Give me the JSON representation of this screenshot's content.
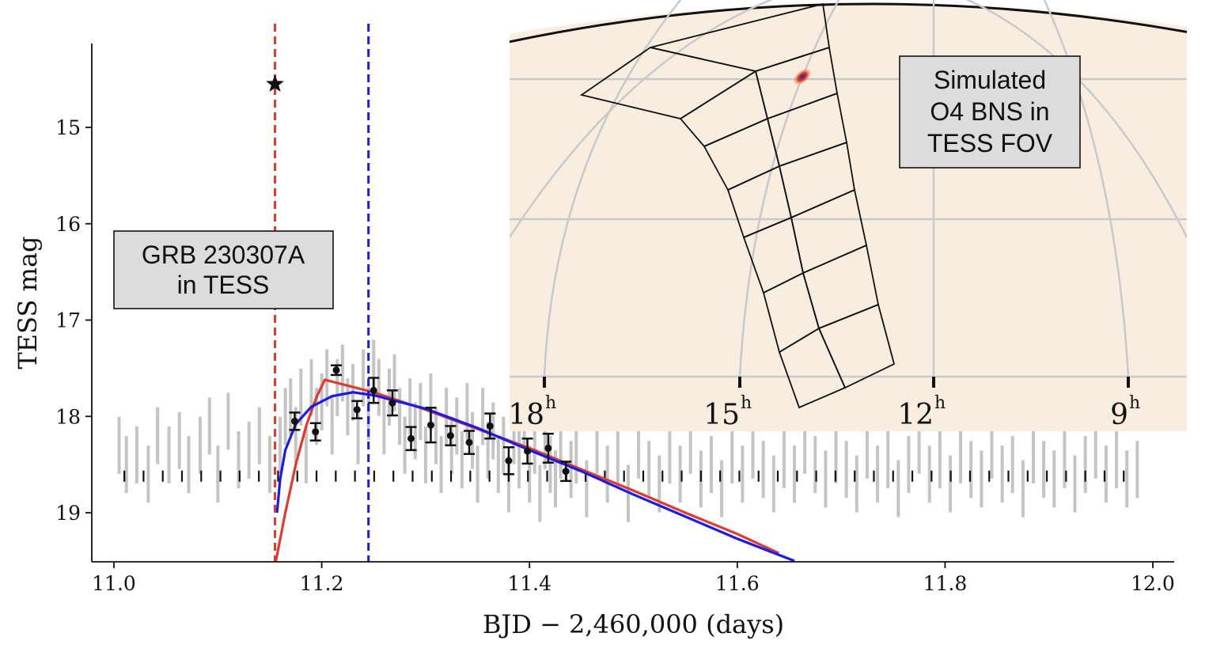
{
  "chart_data": {
    "type": "scatter",
    "xlabel": "BJD − 2,460,000 (days)",
    "ylabel": "TESS mag",
    "xlim": [
      11.0,
      12.0
    ],
    "ylim": [
      19.5,
      14.6
    ],
    "y_inverted": true,
    "xticks": [
      "11.0",
      "11.2",
      "11.4",
      "11.6",
      "11.8",
      "12.0"
    ],
    "yticks": [
      "15",
      "16",
      "17",
      "18",
      "19"
    ],
    "grb_label": "GRB 230307A\nin TESS",
    "grb_marker": {
      "x": 11.155,
      "y": 14.55
    },
    "vlines": [
      {
        "x": 11.155,
        "color": "#e03a2f"
      },
      {
        "x": 11.245,
        "color": "#1a1aee"
      }
    ],
    "raw_points": [
      [
        11.005,
        18.3
      ],
      [
        11.012,
        18.5
      ],
      [
        11.022,
        18.4
      ],
      [
        11.033,
        18.6
      ],
      [
        11.042,
        18.2
      ],
      [
        11.053,
        18.4
      ],
      [
        11.063,
        18.25
      ],
      [
        11.072,
        18.5
      ],
      [
        11.083,
        18.3
      ],
      [
        11.092,
        18.1
      ],
      [
        11.1,
        18.6
      ],
      [
        11.11,
        18.05
      ],
      [
        11.12,
        18.45
      ],
      [
        11.13,
        18.35
      ],
      [
        11.14,
        18.2
      ],
      [
        11.15,
        18.5
      ],
      [
        11.16,
        18.3
      ],
      [
        11.165,
        18.0
      ],
      [
        11.17,
        17.9
      ],
      [
        11.175,
        18.2
      ],
      [
        11.18,
        17.8
      ],
      [
        11.185,
        18.4
      ],
      [
        11.19,
        17.7
      ],
      [
        11.195,
        18.0
      ],
      [
        11.2,
        17.85
      ],
      [
        11.205,
        17.6
      ],
      [
        11.21,
        18.1
      ],
      [
        11.215,
        17.7
      ],
      [
        11.22,
        17.55
      ],
      [
        11.225,
        17.9
      ],
      [
        11.23,
        17.75
      ],
      [
        11.235,
        18.2
      ],
      [
        11.24,
        17.6
      ],
      [
        11.245,
        17.95
      ],
      [
        11.25,
        17.5
      ],
      [
        11.255,
        17.7
      ],
      [
        11.26,
        18.1
      ],
      [
        11.265,
        17.8
      ],
      [
        11.27,
        17.65
      ],
      [
        11.275,
        18.0
      ],
      [
        11.28,
        18.3
      ],
      [
        11.285,
        17.9
      ],
      [
        11.29,
        18.15
      ],
      [
        11.295,
        17.95
      ],
      [
        11.3,
        18.4
      ],
      [
        11.305,
        17.85
      ],
      [
        11.31,
        18.2
      ],
      [
        11.315,
        18.5
      ],
      [
        11.32,
        18.0
      ],
      [
        11.325,
        18.3
      ],
      [
        11.33,
        18.1
      ],
      [
        11.335,
        18.45
      ],
      [
        11.34,
        17.95
      ],
      [
        11.345,
        18.25
      ],
      [
        11.35,
        18.6
      ],
      [
        11.355,
        18.0
      ],
      [
        11.36,
        18.35
      ],
      [
        11.365,
        18.15
      ],
      [
        11.37,
        18.5
      ],
      [
        11.375,
        18.3
      ],
      [
        11.38,
        18.7
      ],
      [
        11.385,
        18.2
      ],
      [
        11.39,
        18.45
      ],
      [
        11.395,
        18.0
      ],
      [
        11.4,
        18.6
      ],
      [
        11.405,
        18.3
      ],
      [
        11.41,
        18.8
      ],
      [
        11.415,
        18.25
      ],
      [
        11.42,
        18.5
      ],
      [
        11.425,
        18.65
      ],
      [
        11.43,
        18.35
      ],
      [
        11.44,
        18.55
      ],
      [
        11.445,
        18.4
      ],
      [
        11.455,
        18.75
      ],
      [
        11.465,
        18.3
      ],
      [
        11.475,
        18.6
      ],
      [
        11.485,
        18.45
      ],
      [
        11.495,
        18.8
      ],
      [
        11.505,
        18.35
      ],
      [
        11.515,
        18.55
      ],
      [
        11.525,
        18.7
      ],
      [
        11.535,
        18.4
      ],
      [
        11.545,
        18.6
      ],
      [
        11.555,
        18.3
      ],
      [
        11.565,
        18.65
      ],
      [
        11.575,
        18.5
      ],
      [
        11.585,
        18.75
      ],
      [
        11.595,
        18.4
      ],
      [
        11.605,
        18.6
      ],
      [
        11.615,
        18.35
      ],
      [
        11.625,
        18.55
      ],
      [
        11.635,
        18.7
      ],
      [
        11.645,
        18.45
      ],
      [
        11.655,
        18.6
      ],
      [
        11.665,
        18.3
      ],
      [
        11.675,
        18.5
      ],
      [
        11.685,
        18.65
      ],
      [
        11.695,
        18.4
      ],
      [
        11.705,
        18.55
      ],
      [
        11.715,
        18.7
      ],
      [
        11.725,
        18.35
      ],
      [
        11.735,
        18.6
      ],
      [
        11.745,
        18.45
      ],
      [
        11.755,
        18.75
      ],
      [
        11.765,
        18.5
      ],
      [
        11.775,
        18.3
      ],
      [
        11.785,
        18.6
      ],
      [
        11.795,
        18.45
      ],
      [
        11.805,
        18.7
      ],
      [
        11.815,
        18.4
      ],
      [
        11.825,
        18.55
      ],
      [
        11.835,
        18.65
      ],
      [
        11.845,
        18.35
      ],
      [
        11.855,
        18.6
      ],
      [
        11.865,
        18.5
      ],
      [
        11.875,
        18.75
      ],
      [
        11.885,
        18.4
      ],
      [
        11.895,
        18.55
      ],
      [
        11.905,
        18.65
      ],
      [
        11.915,
        18.45
      ],
      [
        11.925,
        18.7
      ],
      [
        11.935,
        18.5
      ],
      [
        11.945,
        18.35
      ],
      [
        11.955,
        18.6
      ],
      [
        11.965,
        18.45
      ],
      [
        11.975,
        18.65
      ],
      [
        11.985,
        18.55
      ]
    ],
    "binned": [
      {
        "x": 11.174,
        "y": 18.05,
        "err": 0.09
      },
      {
        "x": 11.194,
        "y": 18.16,
        "err": 0.09
      },
      {
        "x": 11.214,
        "y": 17.52,
        "err": 0.05
      },
      {
        "x": 11.234,
        "y": 17.93,
        "err": 0.09
      },
      {
        "x": 11.25,
        "y": 17.73,
        "err": 0.13
      },
      {
        "x": 11.268,
        "y": 17.86,
        "err": 0.13
      },
      {
        "x": 11.286,
        "y": 18.23,
        "err": 0.12
      },
      {
        "x": 11.305,
        "y": 18.09,
        "err": 0.18
      },
      {
        "x": 11.324,
        "y": 18.2,
        "err": 0.1
      },
      {
        "x": 11.342,
        "y": 18.27,
        "err": 0.12
      },
      {
        "x": 11.362,
        "y": 18.1,
        "err": 0.13
      },
      {
        "x": 11.38,
        "y": 18.46,
        "err": 0.14
      },
      {
        "x": 11.398,
        "y": 18.36,
        "err": 0.13
      },
      {
        "x": 11.418,
        "y": 18.33,
        "err": 0.15
      },
      {
        "x": 11.435,
        "y": 18.57,
        "err": 0.1
      }
    ],
    "upper_limit_ticks": {
      "y": 18.62,
      "x_start": 11.01,
      "x_end": 11.99,
      "step": 0.0185
    },
    "models": [
      {
        "color": "#e03a2f",
        "points": [
          [
            11.155,
            19.55
          ],
          [
            11.165,
            19.0
          ],
          [
            11.175,
            18.5
          ],
          [
            11.185,
            18.1
          ],
          [
            11.195,
            17.8
          ],
          [
            11.203,
            17.62
          ],
          [
            11.25,
            17.75
          ],
          [
            11.3,
            17.93
          ],
          [
            11.35,
            18.13
          ],
          [
            11.4,
            18.33
          ],
          [
            11.45,
            18.55
          ],
          [
            11.5,
            18.77
          ],
          [
            11.55,
            19.0
          ],
          [
            11.6,
            19.22
          ],
          [
            11.64,
            19.42
          ]
        ]
      },
      {
        "color": "#1a1aee",
        "points": [
          [
            11.157,
            19.0
          ],
          [
            11.16,
            18.65
          ],
          [
            11.165,
            18.35
          ],
          [
            11.175,
            18.08
          ],
          [
            11.19,
            17.9
          ],
          [
            11.21,
            17.79
          ],
          [
            11.23,
            17.75
          ],
          [
            11.25,
            17.78
          ],
          [
            11.3,
            17.92
          ],
          [
            11.35,
            18.12
          ],
          [
            11.4,
            18.35
          ],
          [
            11.45,
            18.57
          ],
          [
            11.5,
            18.81
          ],
          [
            11.55,
            19.04
          ],
          [
            11.6,
            19.27
          ],
          [
            11.655,
            19.5
          ]
        ]
      }
    ],
    "inset": {
      "label": "Simulated\nO4 BNS in\nTESS FOV",
      "ra_labels": [
        "18",
        "15",
        "12",
        "9"
      ],
      "ra_unit": "h",
      "background": "#f9ede0"
    }
  }
}
